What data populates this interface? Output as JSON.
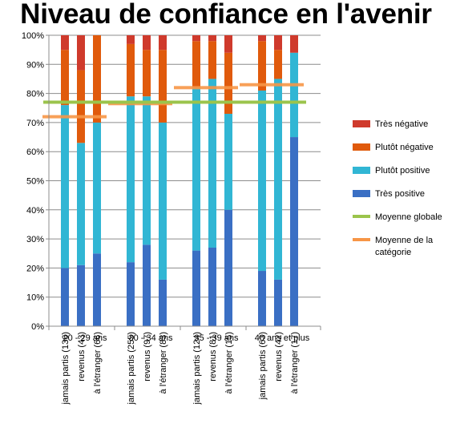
{
  "chart_data": {
    "type": "bar",
    "stacked": true,
    "title": "Niveau de confiance en l'avenir",
    "ylim": [
      0,
      100
    ],
    "y_ticks": [
      "0%",
      "10%",
      "20%",
      "30%",
      "40%",
      "50%",
      "60%",
      "70%",
      "80%",
      "90%",
      "100%"
    ],
    "grid": true,
    "legend_position": "right",
    "groups": [
      {
        "label": "20 - 29 ans",
        "mean": 72,
        "categories": [
          "jamais partis (136)",
          "revenus (43)",
          "à l'étranger (66)"
        ]
      },
      {
        "label": "30 - 34 ans",
        "mean": 76.5,
        "categories": [
          "jamais partis (255)",
          "revenus (97)",
          "à l'étranger (83)"
        ]
      },
      {
        "label": "35 - 39 ans",
        "mean": 82,
        "categories": [
          "jamais partis (124)",
          "revenus (81)",
          "à l'étranger (15)"
        ]
      },
      {
        "label": "40 ans et plus",
        "mean": 83,
        "categories": [
          "jamais partis (63)",
          "revenus (42)",
          "à l'étranger (17)"
        ]
      }
    ],
    "series": [
      {
        "name": "Très positive",
        "color": "#3a6fc4",
        "values": [
          20,
          21,
          25,
          22,
          28,
          16,
          26,
          27,
          40,
          19,
          16,
          65
        ]
      },
      {
        "name": "Plutôt positive",
        "color": "#31b6d4",
        "values": [
          56,
          42,
          45,
          57,
          51,
          54,
          56,
          58,
          33,
          62,
          69,
          29
        ]
      },
      {
        "name": "Plutôt négative",
        "color": "#e05a0c",
        "values": [
          19,
          25,
          30,
          18,
          16,
          25,
          16,
          13,
          21,
          17,
          10,
          0
        ]
      },
      {
        "name": "Très négative",
        "color": "#cf3a2c",
        "values": [
          5,
          12,
          0,
          3,
          5,
          5,
          2,
          2,
          6,
          2,
          5,
          6
        ]
      }
    ],
    "overall_mean": {
      "name": "Moyenne globale",
      "color": "#9bc44c",
      "value": 77
    },
    "category_mean": {
      "name": "Moyenne de la catégorie",
      "color": "#f79646"
    },
    "legend": [
      "Très négative",
      "Plutôt négative",
      "Plutôt positive",
      "Très positive",
      "Moyenne globale",
      "Moyenne de la catégorie"
    ]
  }
}
